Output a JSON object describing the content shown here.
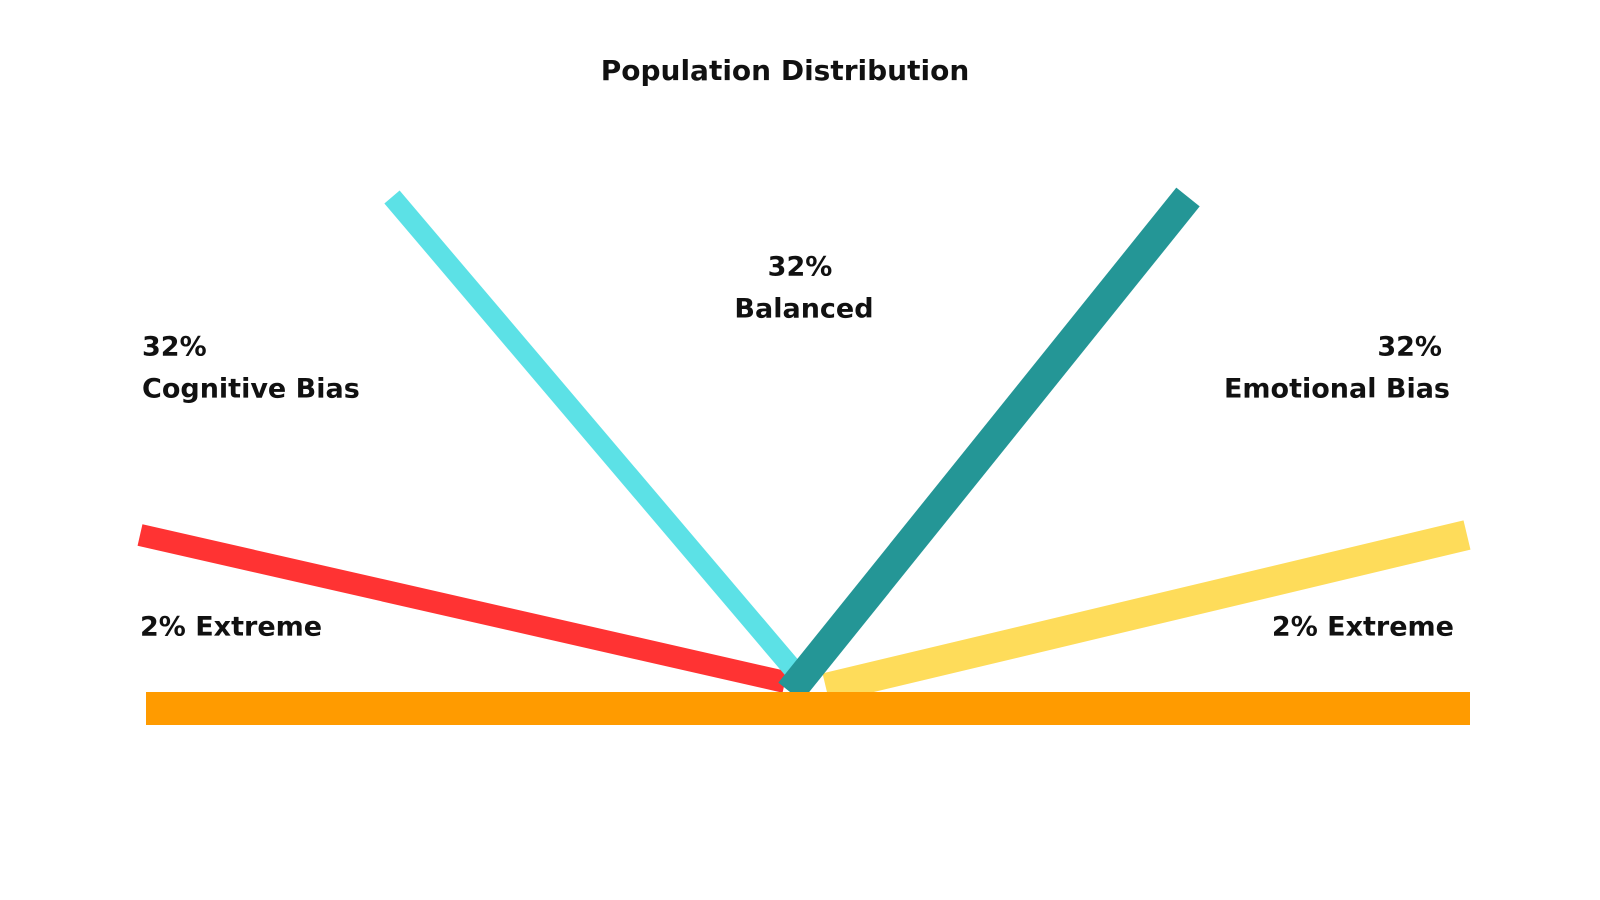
{
  "title": "Population Distribution",
  "groups": [
    {
      "percent": "32%",
      "name": "Cognitive Bias"
    },
    {
      "percent": "32%",
      "name": "Balanced"
    },
    {
      "percent": "32%",
      "name": "Emotional Bias"
    }
  ],
  "extremes": [
    "2% Extreme",
    "2% Extreme"
  ]
}
